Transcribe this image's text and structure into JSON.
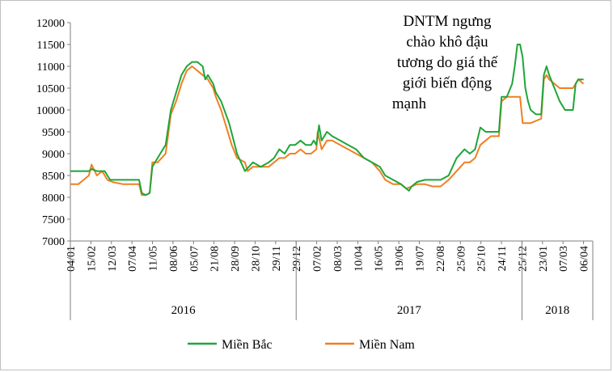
{
  "chart_data": {
    "type": "line",
    "title": "",
    "xlabel": "",
    "ylabel": "",
    "ylim": [
      7000,
      12000
    ],
    "yticks": [
      7000,
      7500,
      8000,
      8500,
      9000,
      9500,
      10000,
      10500,
      11000,
      11500,
      12000
    ],
    "x_tick_labels": [
      "04/01",
      "15/02",
      "12/03",
      "07/04",
      "11/05",
      "08/06",
      "05/07",
      "21/08",
      "28/09",
      "28/10",
      "29/11",
      "29/12",
      "07/02",
      "08/03",
      "10/04",
      "16/05",
      "19/06",
      "19/07",
      "22/08",
      "25/09",
      "25/10",
      "24/11",
      "25/12",
      "23/01",
      "07/03",
      "06/04"
    ],
    "year_groups": [
      {
        "label": "2016",
        "from_tick": 0,
        "to_tick": 11
      },
      {
        "label": "2017",
        "from_tick": 11,
        "to_tick": 22
      },
      {
        "label": "2018",
        "from_tick": 22,
        "to_tick": 25
      }
    ],
    "grid": false,
    "legend_position": "bottom",
    "annotation": {
      "lines": [
        "DNTM ngưng",
        "chào khô  đậu",
        "tương do giá thế",
        "giới  biến  động",
        "mạnh"
      ]
    },
    "series": [
      {
        "name": "Miền Bắc",
        "color": "#1fa53a",
        "points": [
          [
            0,
            8600
          ],
          [
            0.7,
            8600
          ],
          [
            0.8,
            8650
          ],
          [
            1.0,
            8600
          ],
          [
            1.3,
            8600
          ],
          [
            1.4,
            8500
          ],
          [
            1.5,
            8400
          ],
          [
            2.0,
            8400
          ],
          [
            2.4,
            8400
          ],
          [
            2.6,
            8400
          ],
          [
            2.7,
            8100
          ],
          [
            2.85,
            8050
          ],
          [
            3.0,
            8100
          ],
          [
            3.1,
            8700
          ],
          [
            3.3,
            8900
          ],
          [
            3.6,
            9200
          ],
          [
            3.8,
            10000
          ],
          [
            4.0,
            10400
          ],
          [
            4.2,
            10800
          ],
          [
            4.4,
            11000
          ],
          [
            4.6,
            11100
          ],
          [
            4.8,
            11100
          ],
          [
            5.0,
            11000
          ],
          [
            5.1,
            10700
          ],
          [
            5.2,
            10800
          ],
          [
            5.4,
            10600
          ],
          [
            5.5,
            10400
          ],
          [
            5.7,
            10200
          ],
          [
            6.0,
            9700
          ],
          [
            6.3,
            9000
          ],
          [
            6.6,
            8600
          ],
          [
            6.9,
            8800
          ],
          [
            7.2,
            8700
          ],
          [
            7.5,
            8800
          ],
          [
            7.7,
            8900
          ],
          [
            7.9,
            9100
          ],
          [
            8.1,
            9000
          ],
          [
            8.3,
            9200
          ],
          [
            8.5,
            9200
          ],
          [
            8.7,
            9300
          ],
          [
            8.9,
            9200
          ],
          [
            9.1,
            9200
          ],
          [
            9.2,
            9300
          ],
          [
            9.3,
            9200
          ],
          [
            9.4,
            9650
          ],
          [
            9.5,
            9300
          ],
          [
            9.7,
            9500
          ],
          [
            9.9,
            9400
          ],
          [
            10.2,
            9300
          ],
          [
            10.5,
            9200
          ],
          [
            10.8,
            9100
          ],
          [
            11.1,
            8900
          ],
          [
            11.4,
            8800
          ],
          [
            11.7,
            8700
          ],
          [
            11.9,
            8500
          ],
          [
            12.2,
            8400
          ],
          [
            12.5,
            8300
          ],
          [
            12.7,
            8200
          ],
          [
            12.8,
            8150
          ],
          [
            12.9,
            8250
          ],
          [
            13.1,
            8350
          ],
          [
            13.4,
            8400
          ],
          [
            13.7,
            8400
          ],
          [
            14.0,
            8400
          ],
          [
            14.3,
            8500
          ],
          [
            14.6,
            8900
          ],
          [
            14.9,
            9100
          ],
          [
            15.1,
            9000
          ],
          [
            15.3,
            9100
          ],
          [
            15.5,
            9600
          ],
          [
            15.7,
            9500
          ],
          [
            15.9,
            9500
          ],
          [
            16.2,
            9500
          ],
          [
            16.3,
            10300
          ],
          [
            16.5,
            10300
          ],
          [
            16.7,
            10600
          ],
          [
            16.8,
            11000
          ],
          [
            16.9,
            11500
          ],
          [
            17.0,
            11500
          ],
          [
            17.1,
            11200
          ],
          [
            17.2,
            10500
          ],
          [
            17.3,
            10200
          ],
          [
            17.4,
            10000
          ],
          [
            17.6,
            9900
          ],
          [
            17.8,
            9900
          ],
          [
            17.9,
            10800
          ],
          [
            18.0,
            11000
          ],
          [
            18.1,
            10800
          ],
          [
            18.3,
            10500
          ],
          [
            18.5,
            10200
          ],
          [
            18.7,
            10000
          ],
          [
            19.0,
            10000
          ],
          [
            19.1,
            10600
          ],
          [
            19.2,
            10700
          ],
          [
            19.4,
            10700
          ]
        ]
      },
      {
        "name": "Miền Nam",
        "color": "#f07f23",
        "points": [
          [
            0,
            8300
          ],
          [
            0.3,
            8300
          ],
          [
            0.5,
            8400
          ],
          [
            0.7,
            8500
          ],
          [
            0.8,
            8750
          ],
          [
            1.0,
            8500
          ],
          [
            1.2,
            8600
          ],
          [
            1.4,
            8400
          ],
          [
            1.6,
            8350
          ],
          [
            2.0,
            8300
          ],
          [
            2.4,
            8300
          ],
          [
            2.6,
            8300
          ],
          [
            2.7,
            8050
          ],
          [
            2.85,
            8050
          ],
          [
            3.0,
            8100
          ],
          [
            3.1,
            8800
          ],
          [
            3.3,
            8800
          ],
          [
            3.6,
            9000
          ],
          [
            3.8,
            9900
          ],
          [
            4.0,
            10200
          ],
          [
            4.2,
            10600
          ],
          [
            4.4,
            10900
          ],
          [
            4.6,
            11000
          ],
          [
            4.8,
            10900
          ],
          [
            5.0,
            10800
          ],
          [
            5.2,
            10700
          ],
          [
            5.4,
            10500
          ],
          [
            5.5,
            10300
          ],
          [
            5.7,
            10000
          ],
          [
            5.9,
            9600
          ],
          [
            6.1,
            9200
          ],
          [
            6.3,
            8900
          ],
          [
            6.6,
            8800
          ],
          [
            6.7,
            8600
          ],
          [
            6.9,
            8700
          ],
          [
            7.2,
            8700
          ],
          [
            7.5,
            8700
          ],
          [
            7.7,
            8800
          ],
          [
            7.9,
            8900
          ],
          [
            8.1,
            8900
          ],
          [
            8.3,
            9000
          ],
          [
            8.5,
            9000
          ],
          [
            8.7,
            9100
          ],
          [
            8.9,
            9000
          ],
          [
            9.1,
            9000
          ],
          [
            9.3,
            9100
          ],
          [
            9.35,
            9500
          ],
          [
            9.5,
            9100
          ],
          [
            9.7,
            9300
          ],
          [
            9.9,
            9300
          ],
          [
            10.2,
            9200
          ],
          [
            10.5,
            9100
          ],
          [
            10.8,
            9000
          ],
          [
            11.1,
            8900
          ],
          [
            11.4,
            8800
          ],
          [
            11.7,
            8600
          ],
          [
            11.9,
            8400
          ],
          [
            12.2,
            8300
          ],
          [
            12.5,
            8300
          ],
          [
            12.7,
            8200
          ],
          [
            12.9,
            8250
          ],
          [
            13.1,
            8300
          ],
          [
            13.4,
            8300
          ],
          [
            13.7,
            8250
          ],
          [
            14.0,
            8250
          ],
          [
            14.3,
            8400
          ],
          [
            14.6,
            8600
          ],
          [
            14.9,
            8800
          ],
          [
            15.1,
            8800
          ],
          [
            15.3,
            8900
          ],
          [
            15.5,
            9200
          ],
          [
            15.7,
            9300
          ],
          [
            15.9,
            9400
          ],
          [
            16.2,
            9400
          ],
          [
            16.3,
            10200
          ],
          [
            16.5,
            10300
          ],
          [
            16.7,
            10300
          ],
          [
            16.8,
            10300
          ],
          [
            16.9,
            10300
          ],
          [
            17.0,
            10300
          ],
          [
            17.1,
            9700
          ],
          [
            17.4,
            9700
          ],
          [
            17.6,
            9750
          ],
          [
            17.8,
            9800
          ],
          [
            17.9,
            10700
          ],
          [
            18.0,
            10800
          ],
          [
            18.1,
            10700
          ],
          [
            18.3,
            10600
          ],
          [
            18.5,
            10500
          ],
          [
            18.7,
            10500
          ],
          [
            19.0,
            10500
          ],
          [
            19.1,
            10600
          ],
          [
            19.2,
            10700
          ],
          [
            19.4,
            10600
          ]
        ]
      }
    ]
  }
}
